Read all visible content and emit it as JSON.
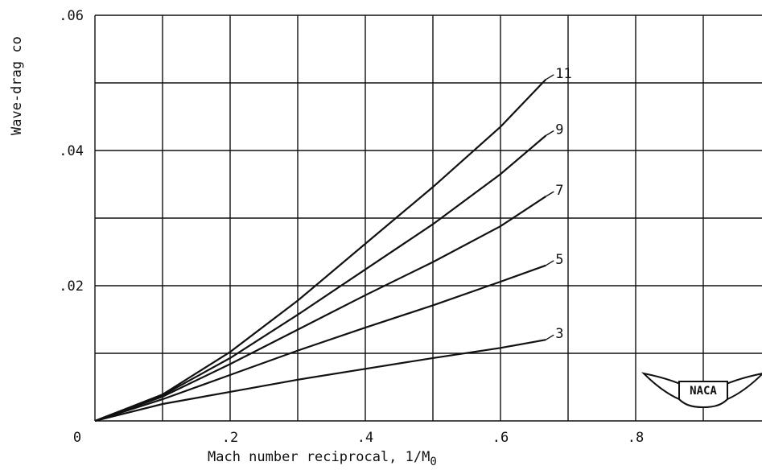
{
  "chart_data": {
    "type": "line",
    "xlabel": "Mach number reciprocal, 1/M",
    "xlabel_subscript": "0",
    "ylabel": "Wave-drag co",
    "xlim": [
      0,
      1.0
    ],
    "ylim": [
      0,
      0.06
    ],
    "x_ticks": [
      0,
      0.2,
      0.4,
      0.6,
      0.8
    ],
    "x_tick_labels": [
      "0",
      ".2",
      ".4",
      ".6",
      ".8"
    ],
    "y_ticks": [
      0.02,
      0.04,
      0.06
    ],
    "y_tick_labels": [
      ".02",
      ".04",
      ".06"
    ],
    "grid": true,
    "logo_text": "NACA",
    "series": [
      {
        "name": "3",
        "x": [
          0,
          0.1,
          0.2,
          0.3,
          0.4,
          0.5,
          0.6,
          0.667
        ],
        "y": [
          0,
          0.0025,
          0.0043,
          0.0061,
          0.0077,
          0.0093,
          0.0108,
          0.012
        ]
      },
      {
        "name": "5",
        "x": [
          0,
          0.1,
          0.2,
          0.3,
          0.4,
          0.5,
          0.6,
          0.667
        ],
        "y": [
          0,
          0.0032,
          0.0068,
          0.0104,
          0.0138,
          0.0171,
          0.0206,
          0.023
        ]
      },
      {
        "name": "7",
        "x": [
          0,
          0.1,
          0.2,
          0.3,
          0.4,
          0.5,
          0.6,
          0.667
        ],
        "y": [
          0,
          0.0036,
          0.0084,
          0.0135,
          0.0186,
          0.0235,
          0.0288,
          0.0332
        ]
      },
      {
        "name": "9",
        "x": [
          0,
          0.1,
          0.2,
          0.3,
          0.4,
          0.5,
          0.6,
          0.667
        ],
        "y": [
          0,
          0.0038,
          0.0093,
          0.0157,
          0.0224,
          0.0291,
          0.0365,
          0.0422
        ]
      },
      {
        "name": "11",
        "x": [
          0,
          0.1,
          0.2,
          0.3,
          0.4,
          0.5,
          0.6,
          0.667
        ],
        "y": [
          0,
          0.0039,
          0.0102,
          0.0178,
          0.0262,
          0.0346,
          0.0435,
          0.0505
        ]
      }
    ]
  }
}
